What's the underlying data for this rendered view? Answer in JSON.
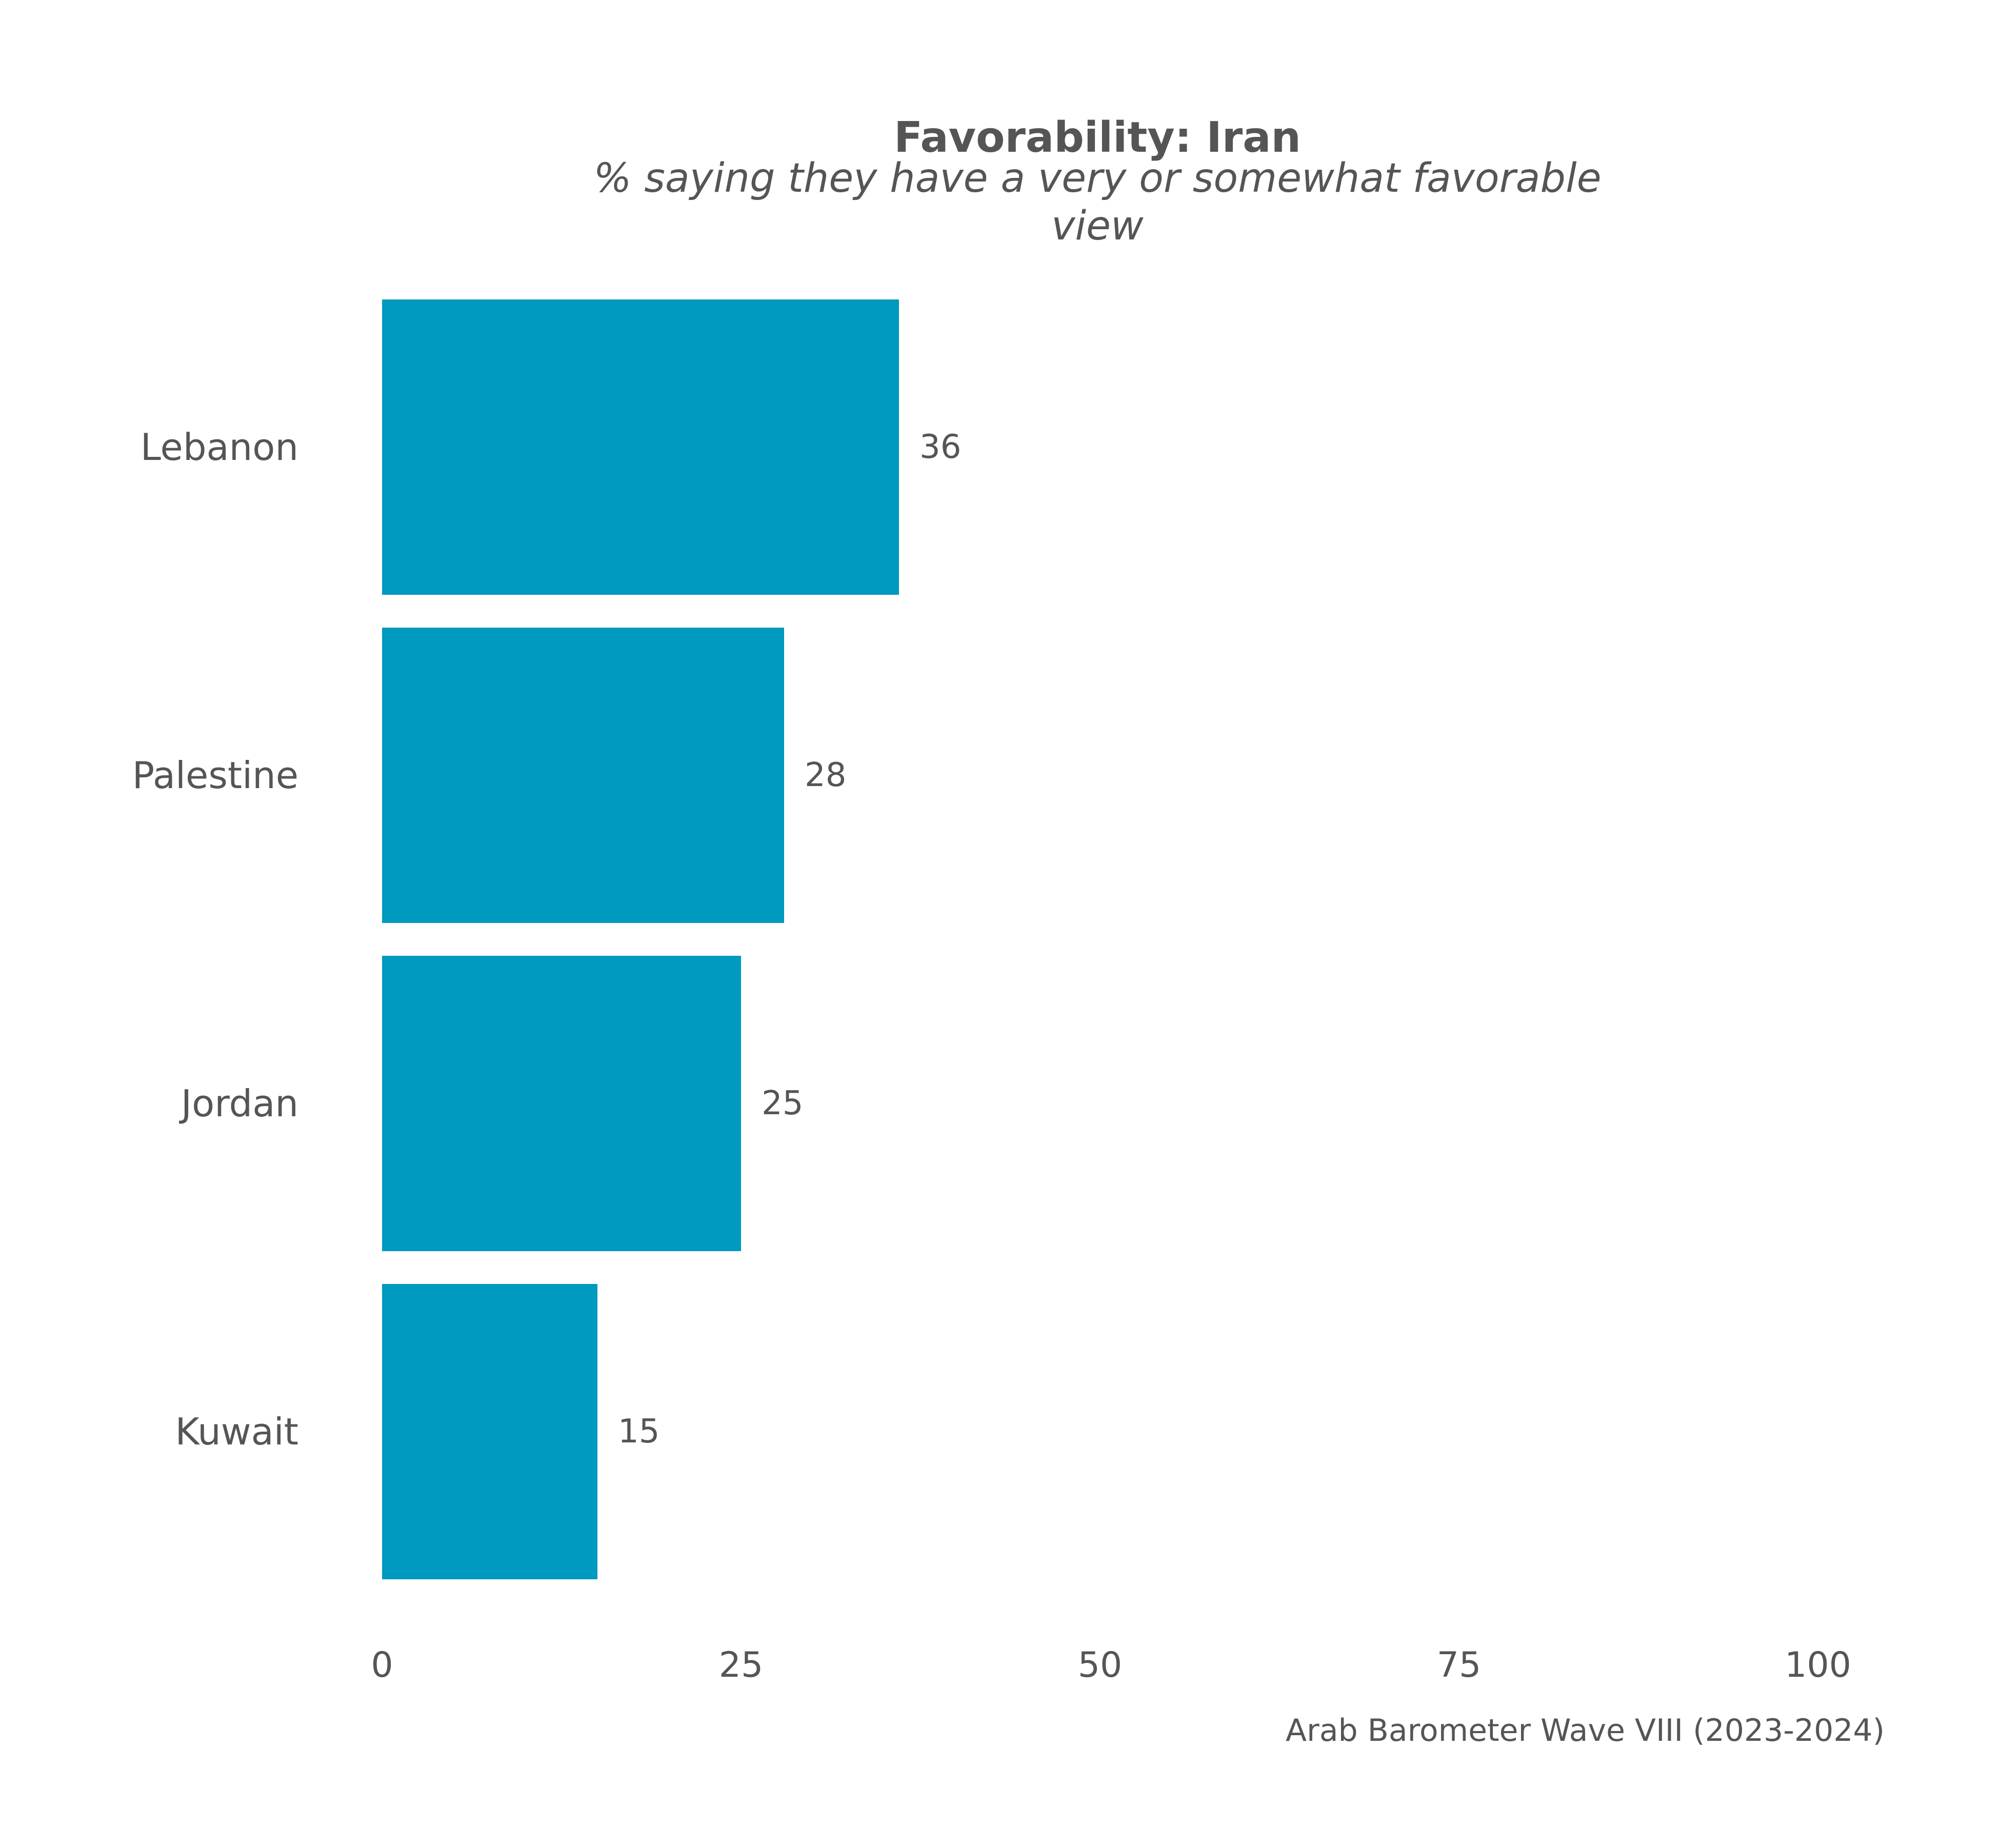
{
  "chart_data": {
    "type": "bar",
    "orientation": "horizontal",
    "title": "Favorability: Iran",
    "subtitle": "% saying they have a very or somewhat favorable view",
    "subtitle_lines": [
      "% saying they have a very or somewhat favorable",
      "view"
    ],
    "caption": "Arab Barometer Wave VIII (2023-2024)",
    "categories": [
      "Lebanon",
      "Palestine",
      "Jordan",
      "Kuwait"
    ],
    "values": [
      36,
      28,
      25,
      15
    ],
    "value_labels": [
      "36",
      "28",
      "25",
      "15"
    ],
    "xlim": [
      0,
      100
    ],
    "x_ticks": [
      0,
      25,
      50,
      75,
      100
    ],
    "x_tick_labels": [
      "0",
      "25",
      "50",
      "75",
      "100"
    ],
    "xlabel": "",
    "ylabel": "",
    "grid": false,
    "legend": "none",
    "colors": {
      "bar": "#0099C0",
      "text": "#555555",
      "background": "#FFFFFF"
    }
  }
}
